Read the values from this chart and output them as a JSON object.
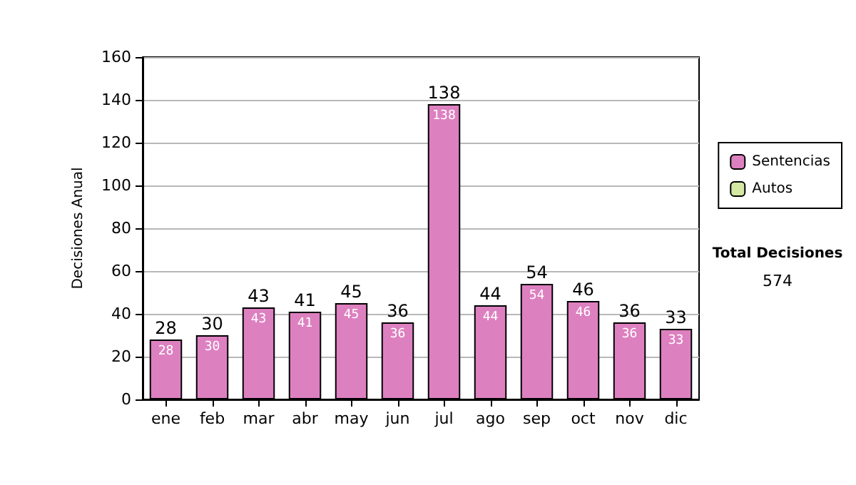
{
  "chart_data": {
    "type": "bar",
    "ylabel": "Decisiones Anual",
    "categories": [
      "ene",
      "feb",
      "mar",
      "abr",
      "may",
      "jun",
      "jul",
      "ago",
      "sep",
      "oct",
      "nov",
      "dic"
    ],
    "series": [
      {
        "name": "Sentencias",
        "color": "#dd80c0",
        "values": [
          28,
          30,
          43,
          41,
          45,
          36,
          138,
          44,
          54,
          46,
          36,
          33
        ]
      },
      {
        "name": "Autos",
        "color": "#d4e8a4",
        "values": [
          null,
          null,
          null,
          null,
          null,
          null,
          null,
          null,
          null,
          null,
          null,
          null
        ]
      }
    ],
    "stacked": true,
    "data_labels": true,
    "totals": [
      "28",
      "30",
      "43",
      "41",
      "45",
      "36",
      "138",
      "44",
      "54",
      "46",
      "36",
      "33"
    ],
    "ylim": [
      0,
      160
    ],
    "yticks": [
      0,
      20,
      40,
      60,
      80,
      100,
      120,
      140,
      160
    ],
    "grid": "y",
    "legend": "right",
    "annotations": [
      "Total Decisiones",
      "574"
    ]
  }
}
